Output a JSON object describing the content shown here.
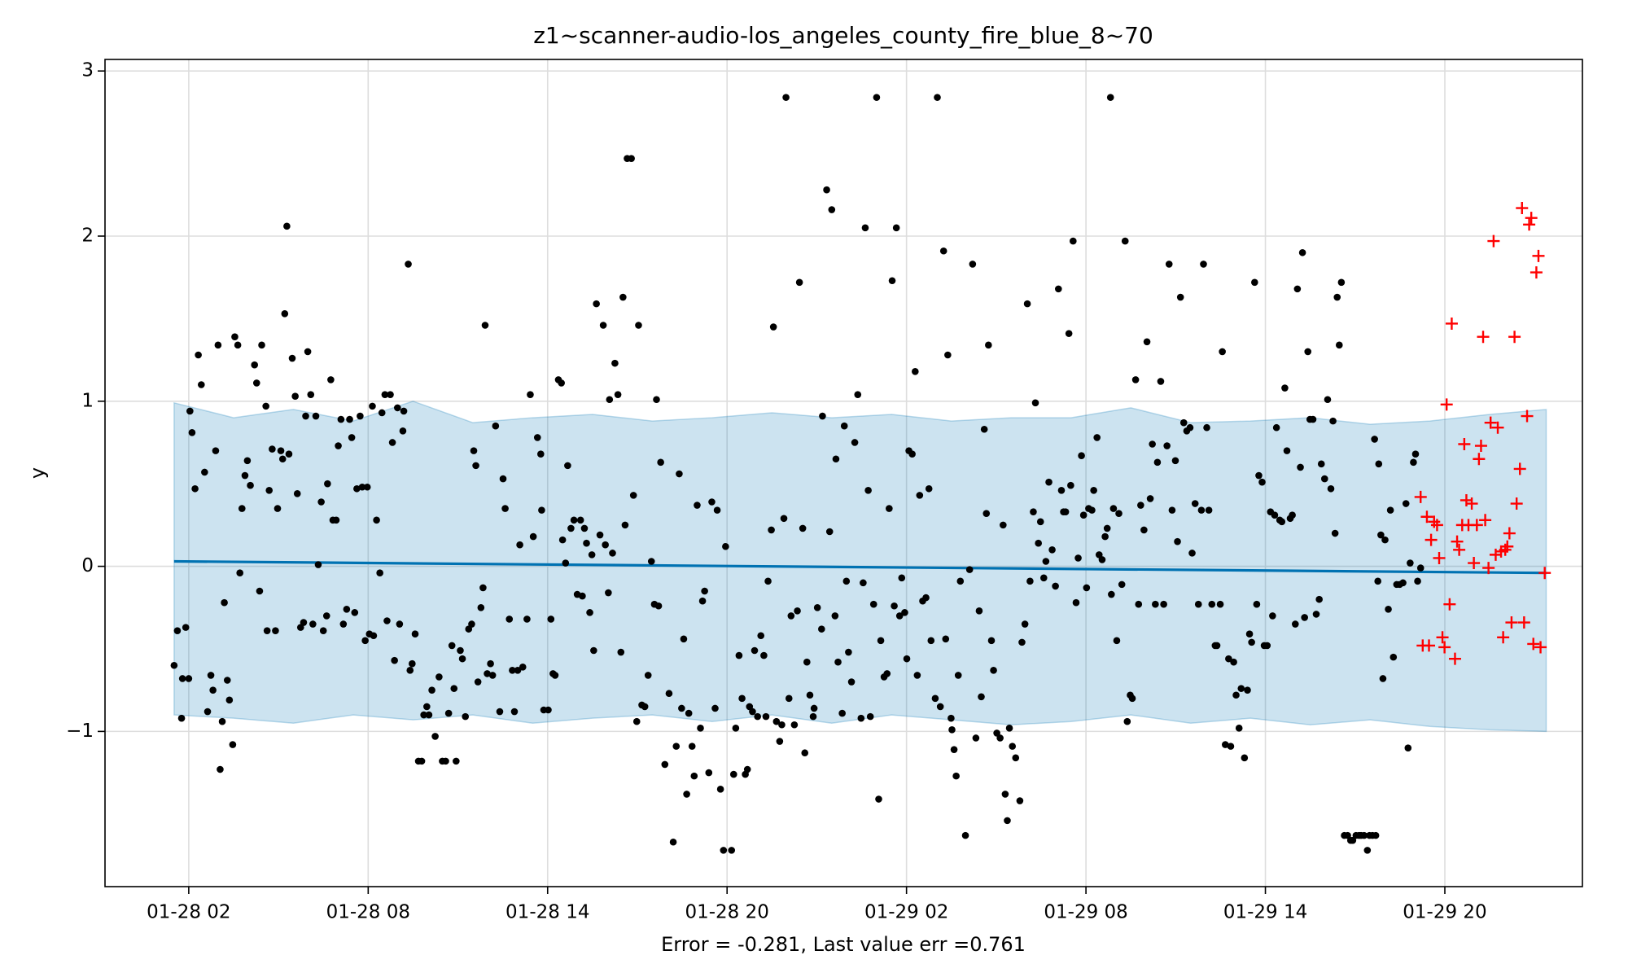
{
  "chart_data": {
    "type": "scatter",
    "title": "z1~scanner-audio-los_angeles_county_fire_blue_8~70",
    "xlabel": "Error = -0.281, Last value err =0.761",
    "ylabel": "y",
    "xlim": [
      -0.8,
      48.6
    ],
    "ylim": [
      -1.94,
      3.07
    ],
    "xticks": [
      {
        "value": 2,
        "label": "01-28 02"
      },
      {
        "value": 8,
        "label": "01-28 08"
      },
      {
        "value": 14,
        "label": "01-28 14"
      },
      {
        "value": 20,
        "label": "01-28 20"
      },
      {
        "value": 26,
        "label": "01-29 02"
      },
      {
        "value": 32,
        "label": "01-29 08"
      },
      {
        "value": 38,
        "label": "01-29 14"
      },
      {
        "value": 44,
        "label": "01-29 20"
      }
    ],
    "yticks": [
      {
        "value": -1,
        "label": "−1"
      },
      0,
      1,
      2,
      3
    ],
    "grid": true,
    "series": [
      {
        "style": "band",
        "color": "#0072b2",
        "x": [
          1.51,
          3.5,
          5.5,
          7.5,
          9.5,
          11.5,
          13.5,
          15.5,
          17.5,
          19.5,
          21.5,
          23.5,
          25.5,
          27.5,
          29.5,
          31.5,
          33.5,
          35.5,
          37.5,
          39.5,
          41.5,
          43.5,
          45.5,
          47.39
        ],
        "upper": [
          0.99,
          0.9,
          0.95,
          0.88,
          1.0,
          0.87,
          0.9,
          0.92,
          0.88,
          0.9,
          0.93,
          0.9,
          0.92,
          0.88,
          0.9,
          0.9,
          0.96,
          0.87,
          0.88,
          0.9,
          0.86,
          0.88,
          0.92,
          0.95
        ],
        "lower": [
          -0.9,
          -0.92,
          -0.95,
          -0.9,
          -0.93,
          -0.9,
          -0.95,
          -0.92,
          -0.9,
          -0.94,
          -0.9,
          -0.95,
          -0.9,
          -0.93,
          -0.96,
          -0.94,
          -0.9,
          -0.95,
          -0.92,
          -0.96,
          -0.93,
          -0.97,
          -0.99,
          -1.0
        ]
      },
      {
        "style": "line",
        "color": "#0072b2",
        "x": [
          1.51,
          47.39
        ],
        "values": [
          0.03,
          -0.04
        ]
      },
      {
        "style": "points",
        "marker": "dot",
        "color": "#000000",
        "x": [
          1.51,
          1.62,
          1.76,
          1.79,
          1.9,
          2.0,
          2.04,
          2.11,
          2.21,
          2.32,
          2.42,
          2.53,
          2.63,
          2.74,
          2.81,
          2.9,
          2.98,
          3.05,
          3.12,
          3.19,
          3.29,
          3.36,
          3.47,
          3.54,
          3.64,
          3.71,
          3.78,
          3.88,
          3.96,
          4.06,
          4.2,
          4.27,
          4.37,
          4.44,
          4.58,
          4.62,
          4.69,
          4.79,
          4.9,
          4.97,
          5.08,
          5.14,
          5.21,
          5.28,
          5.35,
          5.46,
          5.56,
          5.63,
          5.74,
          5.84,
          5.91,
          5.98,
          6.08,
          6.15,
          6.25,
          6.33,
          6.43,
          6.5,
          6.61,
          6.64,
          6.75,
          6.82,
          6.93,
          7.0,
          7.09,
          7.17,
          7.28,
          7.38,
          7.45,
          7.55,
          7.62,
          7.73,
          7.8,
          7.9,
          7.97,
          8.04,
          8.14,
          8.18,
          8.28,
          8.39,
          8.46,
          8.56,
          8.63,
          8.74,
          8.81,
          8.88,
          8.98,
          9.05,
          9.16,
          9.19,
          9.34,
          9.4,
          9.47,
          9.57,
          9.68,
          9.79,
          9.86,
          9.96,
          10.03,
          10.13,
          10.24,
          10.37,
          10.48,
          10.59,
          10.69,
          10.8,
          10.87,
          10.94,
          11.08,
          11.15,
          11.25,
          11.36,
          11.46,
          11.53,
          11.6,
          11.67,
          11.77,
          11.84,
          11.91,
          11.98,
          12.09,
          12.16,
          12.26,
          12.4,
          12.51,
          12.58,
          12.72,
          12.82,
          12.89,
          13.0,
          13.07,
          13.17,
          13.31,
          13.42,
          13.52,
          13.66,
          13.77,
          13.8,
          13.87,
          14.02,
          14.11,
          14.18,
          14.25,
          14.36,
          14.46,
          14.5,
          14.6,
          14.67,
          14.78,
          14.88,
          14.99,
          15.1,
          15.16,
          15.23,
          15.3,
          15.41,
          15.48,
          15.54,
          15.63,
          15.75,
          15.86,
          15.93,
          16.03,
          16.07,
          16.17,
          16.25,
          16.35,
          16.45,
          16.52,
          16.59,
          16.66,
          16.8,
          16.87,
          16.98,
          17.04,
          17.15,
          17.25,
          17.36,
          17.47,
          17.57,
          17.64,
          17.71,
          17.78,
          17.92,
          18.06,
          18.2,
          18.3,
          18.4,
          18.48,
          18.55,
          18.65,
          18.72,
          18.83,
          18.9,
          19.0,
          19.11,
          19.18,
          19.25,
          19.39,
          19.49,
          19.6,
          19.67,
          19.78,
          19.88,
          19.95,
          20.15,
          20.22,
          20.29,
          20.4,
          20.5,
          20.61,
          20.68,
          20.75,
          20.85,
          20.92,
          21.02,
          21.13,
          21.23,
          21.3,
          21.37,
          21.48,
          21.55,
          21.65,
          21.76,
          21.83,
          21.9,
          21.97,
          22.07,
          22.14,
          22.25,
          22.35,
          22.42,
          22.53,
          22.6,
          22.67,
          22.77,
          22.88,
          22.91,
          23.02,
          23.16,
          23.19,
          23.33,
          23.43,
          23.5,
          23.61,
          23.64,
          23.71,
          23.85,
          23.92,
          23.99,
          24.06,
          24.16,
          24.27,
          24.37,
          24.48,
          24.55,
          24.62,
          24.72,
          24.79,
          24.9,
          25.0,
          25.07,
          25.14,
          25.25,
          25.35,
          25.42,
          25.52,
          25.59,
          25.66,
          25.77,
          25.84,
          25.94,
          26.01,
          26.08,
          26.19,
          26.29,
          26.36,
          26.44,
          26.54,
          26.65,
          26.75,
          26.82,
          26.96,
          27.03,
          27.13,
          27.24,
          27.31,
          27.38,
          27.49,
          27.52,
          27.59,
          27.66,
          27.73,
          27.8,
          27.97,
          28.11,
          28.21,
          28.32,
          28.43,
          28.5,
          28.6,
          28.67,
          28.74,
          28.84,
          28.91,
          29.02,
          29.13,
          29.23,
          29.3,
          29.37,
          29.44,
          29.54,
          29.65,
          29.79,
          29.86,
          29.96,
          30.04,
          30.13,
          30.24,
          30.31,
          30.41,
          30.48,
          30.59,
          30.66,
          30.76,
          30.87,
          30.98,
          31.08,
          31.18,
          31.25,
          31.32,
          31.43,
          31.49,
          31.57,
          31.67,
          31.74,
          31.85,
          31.92,
          32.02,
          32.09,
          32.2,
          32.26,
          32.37,
          32.44,
          32.54,
          32.64,
          32.71,
          32.82,
          32.85,
          32.92,
          33.03,
          33.1,
          33.2,
          33.31,
          33.38,
          33.48,
          33.55,
          33.66,
          33.76,
          33.83,
          33.94,
          34.04,
          34.15,
          34.22,
          34.32,
          34.39,
          34.5,
          34.6,
          34.71,
          34.78,
          34.88,
          34.99,
          35.06,
          35.16,
          35.27,
          35.37,
          35.48,
          35.55,
          35.65,
          35.76,
          35.86,
          35.93,
          36.04,
          36.11,
          36.21,
          36.32,
          36.38,
          36.49,
          36.56,
          36.66,
          36.77,
          36.84,
          36.94,
          37.02,
          37.12,
          37.19,
          37.3,
          37.4,
          37.47,
          37.54,
          37.64,
          37.71,
          37.78,
          37.89,
          37.96,
          38.06,
          38.17,
          38.24,
          38.31,
          38.37,
          38.48,
          38.55,
          38.65,
          38.72,
          38.83,
          38.9,
          39.0,
          39.07,
          39.17,
          39.24,
          39.31,
          39.42,
          39.49,
          39.59,
          39.7,
          39.8,
          39.87,
          39.98,
          40.08,
          40.19,
          40.26,
          40.33,
          40.4,
          40.47,
          40.54,
          40.64,
          40.75,
          40.85,
          40.92,
          41.03,
          41.13,
          41.2,
          41.3,
          41.41,
          41.48,
          41.58,
          41.65,
          41.69,
          41.76,
          41.79,
          41.86,
          41.93,
          42.0,
          42.11,
          42.18,
          42.28,
          42.39,
          42.49,
          42.6,
          42.7,
          42.77,
          42.84,
          42.95,
          43.02,
          43.09,
          43.19
        ],
        "values": [
          -0.6,
          -0.39,
          -0.92,
          -0.68,
          -0.37,
          -0.68,
          0.94,
          0.81,
          0.47,
          1.28,
          1.1,
          0.57,
          -0.88,
          -0.66,
          -0.75,
          0.7,
          1.34,
          -1.23,
          -0.94,
          -0.22,
          -0.69,
          -0.81,
          -1.08,
          1.39,
          1.34,
          -0.04,
          0.35,
          0.55,
          0.64,
          0.49,
          1.22,
          1.11,
          -0.15,
          1.34,
          0.97,
          -0.39,
          0.46,
          0.71,
          -0.39,
          0.35,
          0.7,
          0.65,
          1.53,
          2.06,
          0.68,
          1.26,
          1.03,
          0.44,
          -0.37,
          -0.34,
          0.91,
          1.3,
          1.04,
          -0.35,
          0.91,
          0.01,
          0.39,
          -0.39,
          -0.3,
          0.5,
          1.13,
          0.28,
          0.28,
          0.73,
          0.89,
          -0.35,
          -0.26,
          0.89,
          0.78,
          -0.28,
          0.47,
          0.91,
          0.48,
          -0.45,
          0.48,
          -0.41,
          0.97,
          -0.42,
          0.28,
          -0.04,
          0.93,
          1.04,
          -0.33,
          1.04,
          0.75,
          -0.57,
          0.96,
          -0.35,
          0.82,
          0.94,
          1.83,
          -0.63,
          -0.59,
          -0.41,
          -1.18,
          -1.18,
          -0.9,
          -0.85,
          -0.9,
          -0.75,
          -1.03,
          -0.67,
          -1.18,
          -1.18,
          -0.89,
          -0.48,
          -0.74,
          -1.18,
          -0.51,
          -0.56,
          -0.91,
          -0.38,
          -0.35,
          0.7,
          0.61,
          -0.7,
          -0.25,
          -0.13,
          1.46,
          -0.65,
          -0.59,
          -0.66,
          0.85,
          -0.88,
          0.53,
          0.35,
          -0.32,
          -0.63,
          -0.88,
          -0.63,
          0.13,
          -0.61,
          -0.32,
          1.04,
          0.18,
          0.78,
          0.68,
          0.34,
          -0.87,
          -0.87,
          -0.32,
          -0.65,
          -0.66,
          1.13,
          1.11,
          0.16,
          0.02,
          0.61,
          0.23,
          0.28,
          -0.17,
          0.28,
          -0.18,
          0.23,
          0.14,
          -0.28,
          0.07,
          -0.51,
          1.59,
          0.19,
          1.46,
          0.13,
          -0.16,
          1.01,
          0.08,
          1.23,
          1.04,
          -0.52,
          1.63,
          0.25,
          2.47,
          2.47,
          0.43,
          -0.94,
          1.46,
          -0.84,
          -0.85,
          -0.66,
          0.03,
          -0.23,
          1.01,
          -0.24,
          0.63,
          -1.2,
          -0.77,
          -1.67,
          -1.09,
          0.56,
          -0.86,
          -0.44,
          -1.38,
          -0.89,
          -1.09,
          -1.27,
          0.37,
          -0.98,
          -0.21,
          -0.15,
          -1.25,
          0.39,
          -0.86,
          0.34,
          -1.35,
          -1.72,
          0.12,
          -1.72,
          -1.26,
          -0.98,
          -0.54,
          -0.8,
          -1.26,
          -1.23,
          -0.85,
          -0.88,
          -0.51,
          -0.91,
          -0.42,
          -0.54,
          -0.91,
          -0.09,
          0.22,
          1.45,
          -0.94,
          -1.06,
          -0.96,
          0.29,
          2.84,
          -0.8,
          -0.3,
          -0.96,
          -0.27,
          1.72,
          0.23,
          -1.13,
          -0.58,
          -0.78,
          -0.91,
          -0.86,
          -0.25,
          -0.38,
          0.91,
          2.28,
          0.21,
          2.16,
          -0.3,
          0.65,
          -0.58,
          -0.89,
          0.85,
          -0.09,
          -0.52,
          -0.7,
          0.75,
          1.04,
          -0.92,
          -0.1,
          2.05,
          0.46,
          -0.91,
          -0.23,
          2.84,
          -1.41,
          -0.45,
          -0.67,
          -0.65,
          0.35,
          1.73,
          -0.24,
          2.05,
          -0.3,
          -0.07,
          -0.28,
          -0.56,
          0.7,
          0.68,
          1.18,
          -0.66,
          0.43,
          -0.21,
          -0.19,
          0.47,
          -0.45,
          -0.8,
          2.84,
          -0.85,
          1.91,
          -0.44,
          1.28,
          -0.92,
          -0.99,
          -1.11,
          -1.27,
          -0.66,
          -0.09,
          -1.63,
          -0.02,
          1.83,
          -1.04,
          -0.27,
          -0.79,
          0.83,
          0.32,
          1.34,
          -0.45,
          -0.63,
          -1.01,
          -1.04,
          0.25,
          -1.38,
          -1.54,
          -0.98,
          -1.09,
          -1.16,
          -1.42,
          -0.46,
          -0.35,
          1.59,
          -0.09,
          0.33,
          0.99,
          0.14,
          0.27,
          -0.07,
          0.03,
          0.51,
          0.1,
          -0.12,
          1.68,
          0.46,
          0.33,
          0.33,
          1.41,
          0.49,
          1.97,
          -0.22,
          0.05,
          0.67,
          0.31,
          -0.13,
          0.35,
          0.34,
          0.46,
          0.78,
          0.07,
          0.04,
          0.18,
          0.23,
          2.84,
          -0.17,
          0.35,
          -0.45,
          0.32,
          -0.11,
          1.97,
          -0.94,
          -0.78,
          -0.8,
          1.13,
          -0.23,
          0.37,
          0.22,
          1.36,
          0.41,
          0.74,
          -0.23,
          0.63,
          1.12,
          -0.23,
          0.73,
          1.83,
          0.34,
          0.64,
          0.15,
          1.63,
          0.87,
          0.82,
          0.84,
          0.08,
          0.38,
          -0.23,
          0.34,
          1.83,
          0.84,
          0.34,
          -0.23,
          -0.48,
          -0.48,
          -0.23,
          1.3,
          -1.08,
          -0.56,
          -1.09,
          -0.58,
          -0.78,
          -0.98,
          -0.74,
          -1.16,
          -0.75,
          -0.41,
          -0.46,
          1.72,
          -0.23,
          0.55,
          0.51,
          -0.48,
          -0.48,
          0.33,
          -0.3,
          0.31,
          0.84,
          0.28,
          0.27,
          1.08,
          0.7,
          0.29,
          0.31,
          -0.35,
          1.68,
          0.6,
          1.9,
          -0.31,
          1.3,
          0.89,
          0.89,
          -0.29,
          -0.2,
          0.62,
          0.53,
          1.01,
          0.47,
          0.88,
          0.2,
          1.63,
          1.34,
          1.72,
          -1.63,
          -1.63,
          -1.66,
          -1.66,
          -1.63,
          -1.63,
          -1.63,
          -1.63,
          -1.72,
          -1.63,
          -1.63,
          0.77,
          -1.63,
          -0.09,
          0.62,
          0.19,
          -0.68,
          0.16,
          -0.26,
          0.34,
          -0.55,
          -0.11,
          -0.11,
          -0.1,
          0.38,
          -1.1,
          0.02,
          0.63,
          0.68,
          -0.09,
          -0.01
        ]
      },
      {
        "style": "points",
        "marker": "plus",
        "color": "#ff0000",
        "x": [
          43.19,
          43.26,
          43.4,
          43.47,
          43.54,
          43.64,
          43.74,
          43.81,
          43.92,
          43.99,
          44.06,
          44.16,
          44.23,
          44.34,
          44.41,
          44.48,
          44.58,
          44.65,
          44.72,
          44.79,
          44.9,
          44.97,
          45.07,
          45.14,
          45.21,
          45.28,
          45.35,
          45.46,
          45.53,
          45.63,
          45.7,
          45.77,
          45.88,
          45.95,
          46.02,
          46.09,
          46.16,
          46.23,
          46.33,
          46.4,
          46.51,
          46.58,
          46.65,
          46.75,
          46.82,
          46.89,
          46.96,
          47.06,
          47.13,
          47.2,
          47.34
        ],
        "values": [
          0.42,
          -0.48,
          0.3,
          -0.48,
          0.16,
          0.27,
          0.25,
          0.05,
          -0.43,
          -0.49,
          0.98,
          -0.23,
          1.47,
          -0.56,
          0.15,
          0.1,
          0.25,
          0.74,
          0.4,
          0.25,
          0.38,
          0.02,
          0.25,
          0.65,
          0.73,
          1.39,
          0.28,
          -0.01,
          0.87,
          1.97,
          0.07,
          0.84,
          0.09,
          -0.43,
          0.1,
          0.12,
          0.2,
          -0.34,
          1.39,
          0.38,
          0.59,
          2.17,
          -0.34,
          0.91,
          2.07,
          2.11,
          -0.47,
          1.78,
          1.88,
          -0.49,
          -0.04
        ]
      }
    ]
  }
}
